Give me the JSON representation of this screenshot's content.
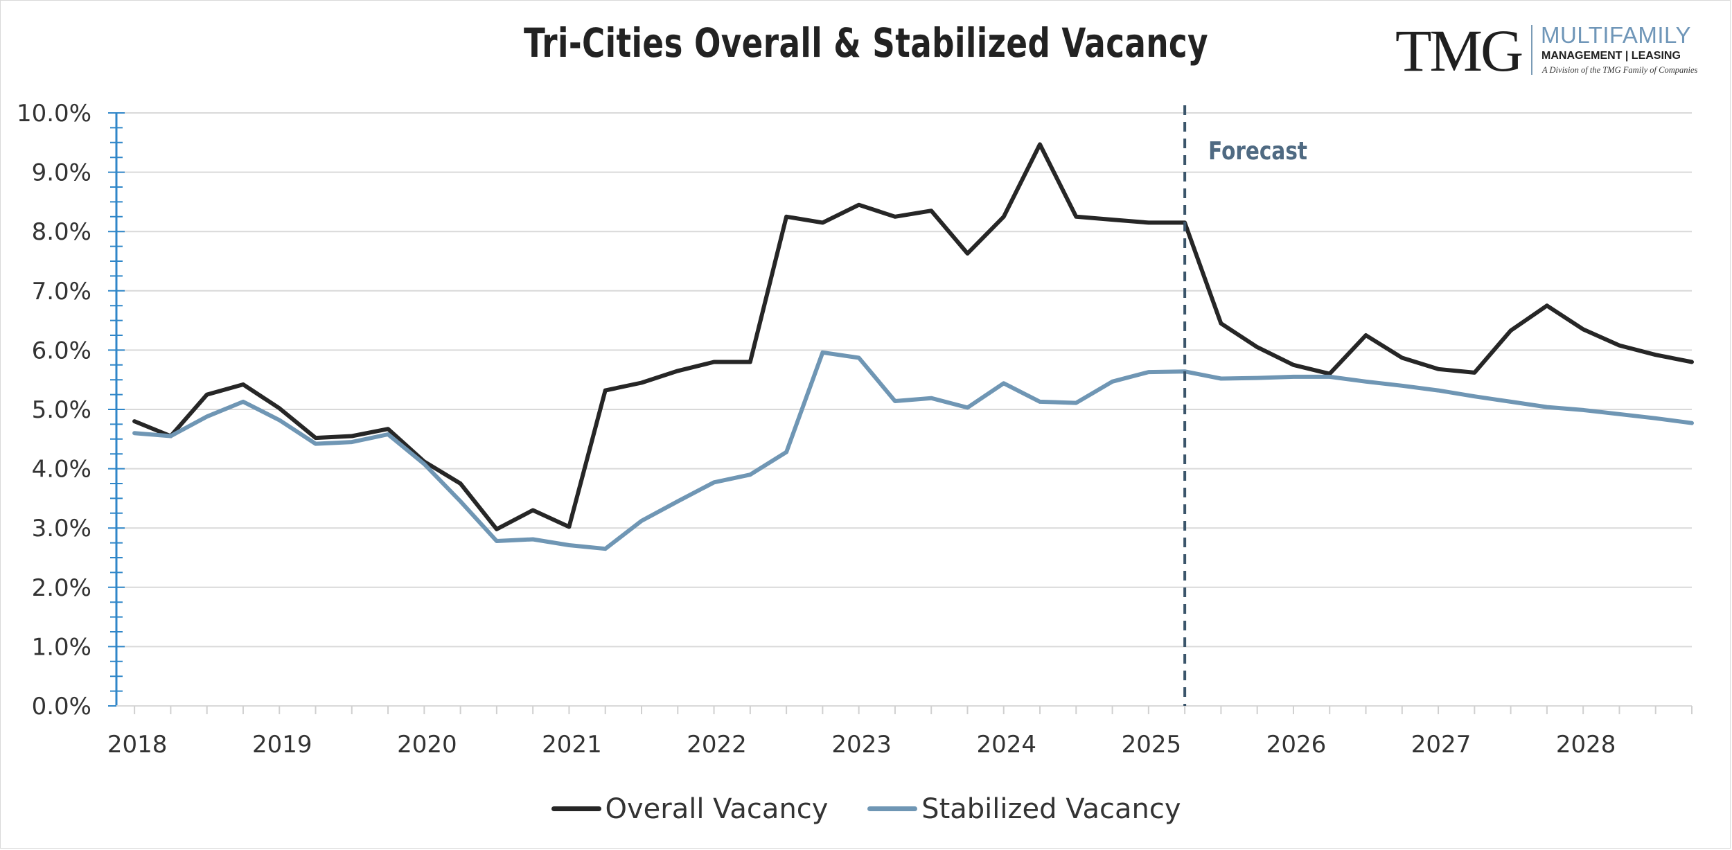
{
  "chart_data": {
    "type": "line",
    "title": "Tri-Cities Overall & Stabilized Vacancy",
    "xlabel": "",
    "ylabel": "",
    "ylim": [
      0,
      10
    ],
    "yticks": [
      "0.0%",
      "1.0%",
      "2.0%",
      "3.0%",
      "4.0%",
      "5.0%",
      "6.0%",
      "7.0%",
      "8.0%",
      "9.0%",
      "10.0%"
    ],
    "xticks": [
      "2018",
      "2019",
      "2020",
      "2021",
      "2022",
      "2023",
      "2024",
      "2025",
      "2026",
      "2027",
      "2028"
    ],
    "grid": true,
    "legend_position": "bottom",
    "annotation": {
      "label": "Forecast",
      "x": 2025.25
    },
    "x": [
      2018.0,
      2018.25,
      2018.5,
      2018.75,
      2019.0,
      2019.25,
      2019.5,
      2019.75,
      2020.0,
      2020.25,
      2020.5,
      2020.75,
      2021.0,
      2021.25,
      2021.5,
      2021.75,
      2022.0,
      2022.25,
      2022.5,
      2022.75,
      2023.0,
      2023.25,
      2023.5,
      2023.75,
      2024.0,
      2024.25,
      2024.5,
      2024.75,
      2025.0,
      2025.25,
      2025.5,
      2025.75,
      2026.0,
      2026.25,
      2026.5,
      2026.75,
      2027.0,
      2027.25,
      2027.5,
      2027.75,
      2028.0,
      2028.25,
      2028.5,
      2028.75
    ],
    "series": [
      {
        "name": "Overall Vacancy",
        "color": "#262626",
        "values": [
          4.8,
          4.55,
          5.25,
          5.42,
          5.02,
          4.52,
          4.55,
          4.67,
          4.12,
          3.75,
          2.98,
          3.3,
          3.02,
          5.32,
          5.45,
          5.65,
          5.8,
          5.8,
          8.25,
          8.15,
          8.45,
          8.25,
          8.35,
          7.63,
          8.25,
          9.47,
          8.25,
          8.2,
          8.15,
          8.15,
          6.45,
          6.05,
          5.75,
          5.6,
          6.25,
          5.87,
          5.68,
          5.62,
          6.33,
          6.75,
          6.35,
          6.08,
          5.92,
          5.8
        ]
      },
      {
        "name": "Stabilized Vacancy",
        "color": "#6f96b4",
        "values": [
          4.6,
          4.55,
          4.88,
          5.13,
          4.82,
          4.42,
          4.45,
          4.58,
          4.08,
          3.45,
          2.78,
          2.81,
          2.71,
          2.65,
          3.12,
          3.45,
          3.77,
          3.9,
          4.28,
          5.96,
          5.87,
          5.14,
          5.19,
          5.03,
          5.44,
          5.13,
          5.11,
          5.47,
          5.63,
          5.64,
          5.52,
          5.53,
          5.55,
          5.55,
          5.47,
          5.4,
          5.32,
          5.22,
          5.13,
          5.04,
          4.99,
          4.92,
          4.85,
          4.77
        ]
      }
    ]
  },
  "logo": {
    "wordmark": "TMG",
    "line1": "MULTIFAMILY",
    "line2": "MANAGEMENT | LEASING",
    "line3": "A Division of the TMG Family of Companies"
  }
}
